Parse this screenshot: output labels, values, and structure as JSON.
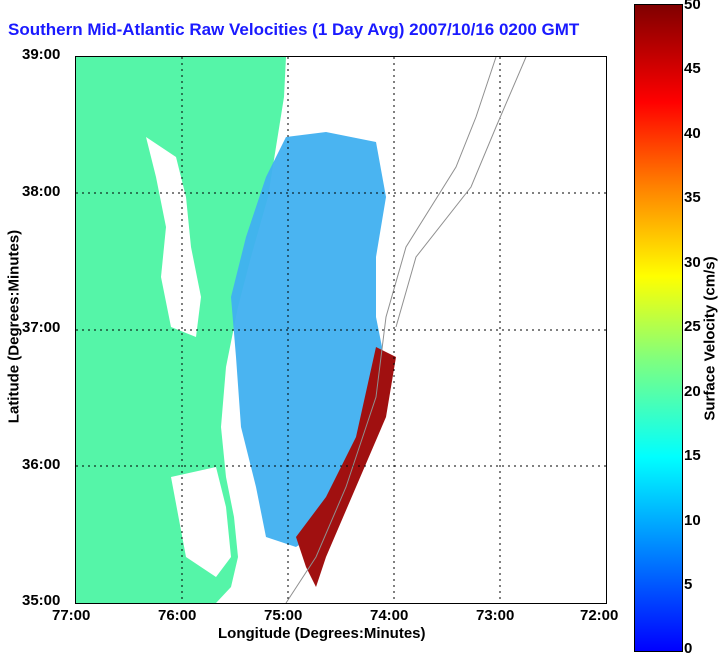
{
  "title": "Southern Mid-Atlantic Raw Velocities (1 Day Avg) 2007/10/16 0200 GMT",
  "x_axis": {
    "label": "Longitude (Degrees:Minutes)",
    "ticks": [
      "77:00",
      "76:00",
      "75:00",
      "74:00",
      "73:00",
      "72:00"
    ]
  },
  "y_axis": {
    "label": "Latitude (Degrees:Minutes)",
    "ticks": [
      "39:00",
      "38:00",
      "37:00",
      "36:00",
      "35:00"
    ]
  },
  "colorbar": {
    "label": "Surface Velocity (cm/s)",
    "ticks": [
      "50",
      "45",
      "40",
      "35",
      "30",
      "25",
      "20",
      "15",
      "10",
      "5",
      "0"
    ]
  },
  "colors": {
    "land": "#55f5a8",
    "title": "#1a1aff",
    "contour": "#909090"
  }
}
